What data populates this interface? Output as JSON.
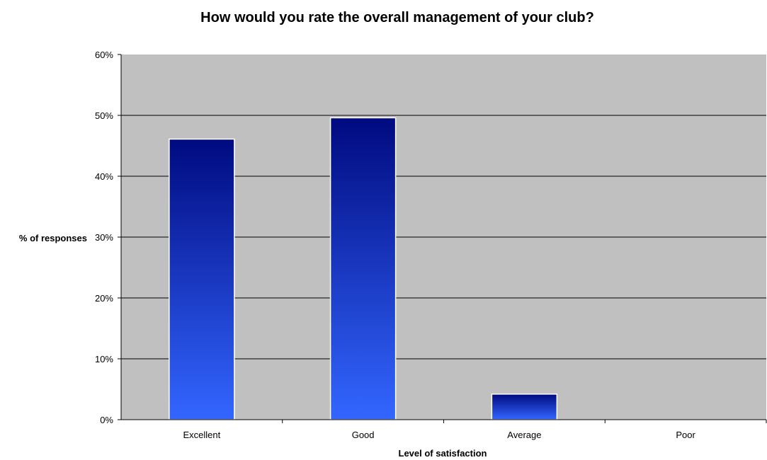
{
  "chart_data": {
    "type": "bar",
    "title": "How would you rate the overall management of your club?",
    "xlabel": "Level of satisfaction",
    "ylabel": "% of responses",
    "categories": [
      "Excellent",
      "Good",
      "Average",
      "Poor"
    ],
    "values": [
      46.1,
      49.6,
      4.2,
      0
    ],
    "ylim": [
      0,
      60
    ],
    "yticks": [
      "0%",
      "10%",
      "20%",
      "30%",
      "40%",
      "50%",
      "60%"
    ],
    "grid": true,
    "legend": "none",
    "colors": {
      "plot_background": "#c0c0c0",
      "bar_top": "#000a80",
      "bar_bottom": "#3366ff",
      "bar_outline": "#ffffff",
      "gridline": "#000000"
    }
  }
}
